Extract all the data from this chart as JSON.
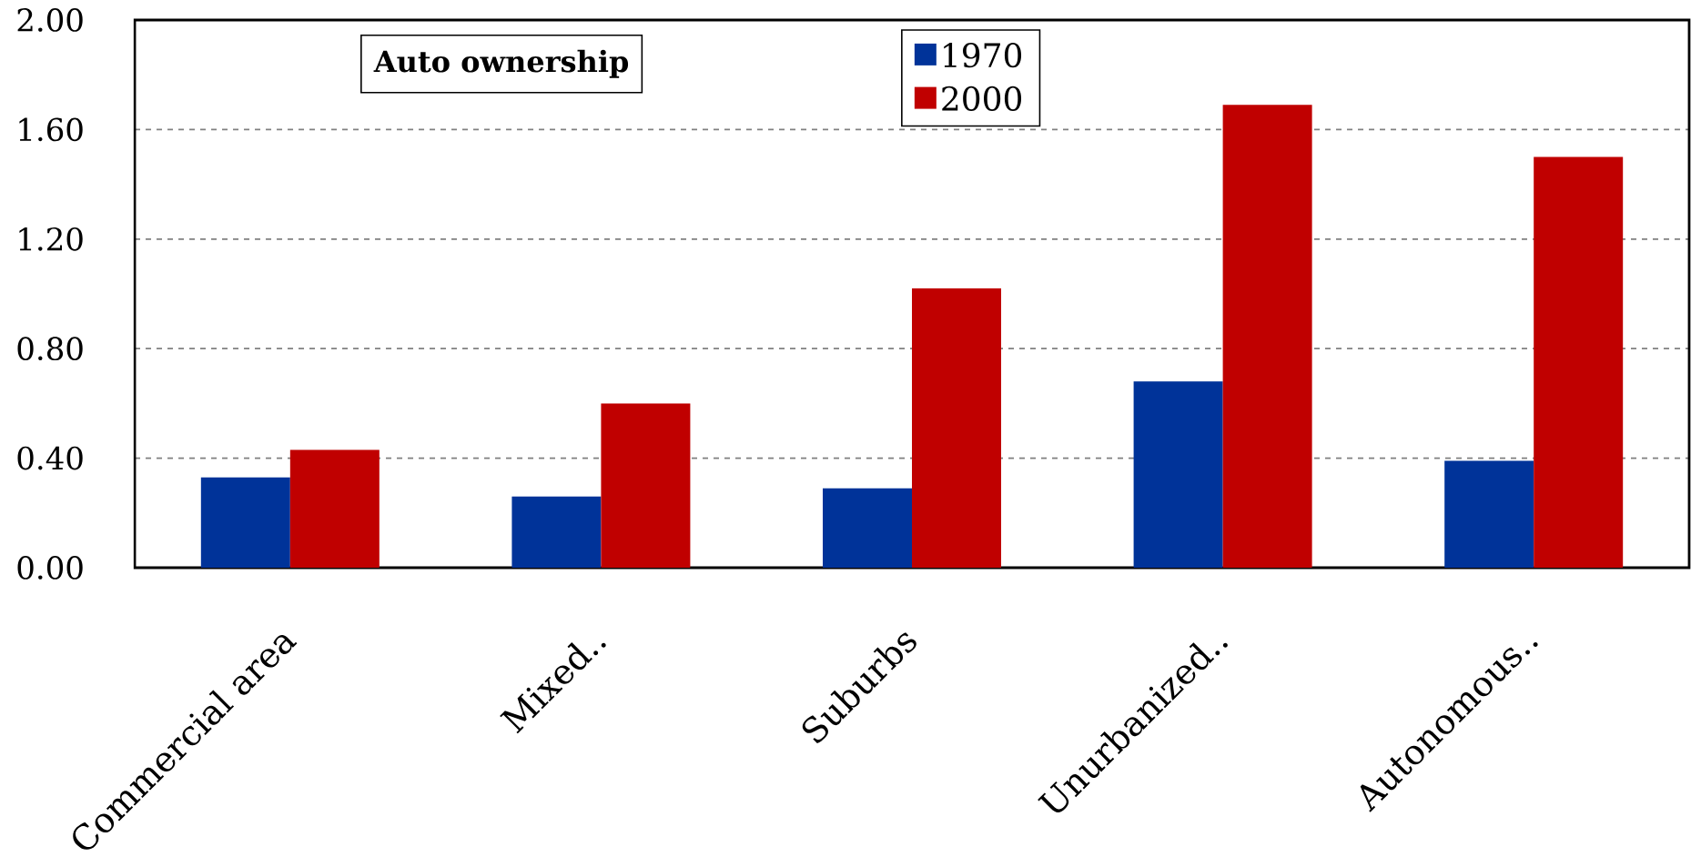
{
  "chart_data": {
    "type": "bar",
    "title": "Auto ownership",
    "categories": [
      "Commercial area",
      "Mixed..",
      "Suburbs",
      "Unurbanized..",
      "Autonomous.."
    ],
    "series": [
      {
        "name": "1970",
        "color": "#003399",
        "values": [
          0.33,
          0.26,
          0.29,
          0.68,
          0.39
        ]
      },
      {
        "name": "2000",
        "color": "#c00000",
        "values": [
          0.43,
          0.6,
          1.02,
          1.69,
          1.5
        ]
      }
    ],
    "ylim": [
      0,
      2
    ],
    "yticks": [
      {
        "value": 0,
        "label": "0.00"
      },
      {
        "value": 0.4,
        "label": "0.40"
      },
      {
        "value": 0.8,
        "label": "0.80"
      },
      {
        "value": 1.2,
        "label": "1.20"
      },
      {
        "value": 1.6,
        "label": "1.60"
      },
      {
        "value": 2,
        "label": "2.00"
      }
    ],
    "grid": "y",
    "legend": "top"
  }
}
